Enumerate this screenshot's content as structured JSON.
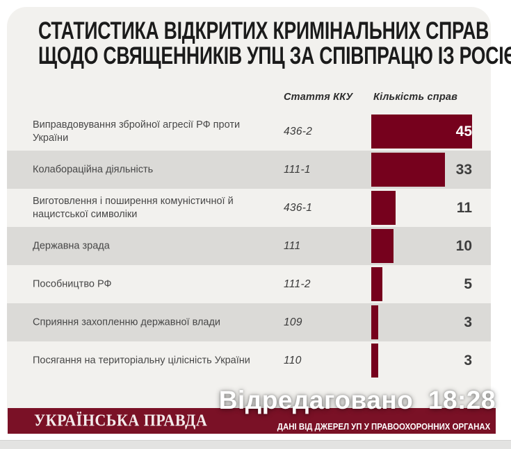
{
  "title": {
    "line1": "СТАТИСТИКА ВІДКРИТИХ КРИМІНАЛЬНИХ СПРАВ",
    "line2": "ЩОДО СВЯЩЕННИКІВ УПЦ ЗА СПІВПРАЦЮ ІЗ РОСІЄЮ"
  },
  "chart_data": {
    "type": "bar",
    "orientation": "horizontal",
    "title": "СТАТИСТИКА ВІДКРИТИХ КРИМІНАЛЬНИХ СПРАВ ЩОДО СВЯЩЕННИКІВ УПЦ ЗА СПІВПРАЦЮ ІЗ РОСІЄЮ",
    "columns": {
      "article": "Стаття ККУ",
      "count": "Кількість справ"
    },
    "categories": [
      "Виправдовування збройної агресії РФ проти України",
      "Колабораційна діяльність",
      "Виготовлення і поширення комуністичної й нацистської символіки",
      "Державна зрада",
      "Пособництво РФ",
      "Сприяння захопленню державної влади",
      "Посягання на територіальну цілісність України"
    ],
    "articles": [
      "436-2",
      "111-1",
      "436-1",
      "111",
      "111-2",
      "109",
      "110"
    ],
    "values": [
      45,
      33,
      11,
      10,
      5,
      3,
      3
    ],
    "xlim": [
      0,
      45
    ],
    "grid": false,
    "value_labels": true,
    "zebra_striping": true
  },
  "footer": {
    "brand": "УКРАЇНСЬКА ПРАВДА",
    "source": "ДАНІ ВІД ДЖЕРЕЛ УП У ПРАВООХОРОННИХ ОРГАНАХ"
  },
  "overlay": {
    "edited_label": "Відредаговано  18:28"
  },
  "colors": {
    "bar": "#76011d",
    "band": "#7a1126",
    "stripe": "#dbdad7",
    "card": "#f2f1ee"
  }
}
